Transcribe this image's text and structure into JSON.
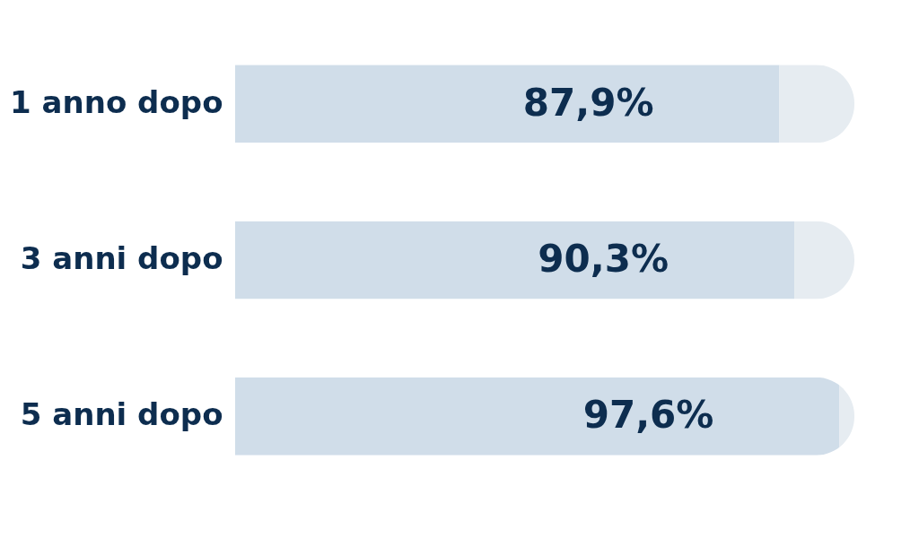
{
  "chart_data": {
    "type": "bar",
    "orientation": "horizontal",
    "stacked": true,
    "categories": [
      "1 anno dopo",
      "3 anni dopo",
      "5 anni dopo"
    ],
    "series": [
      {
        "color": "#d0dde9",
        "values": [
          87.9,
          90.3,
          97.6
        ],
        "value_labels": [
          "87,9%",
          "90,3%",
          "97,6%"
        ]
      },
      {
        "color": "#e6ecf1",
        "values": [
          12.1,
          9.7,
          2.4
        ]
      }
    ],
    "xlim": [
      0,
      100
    ],
    "tick_labels": "y"
  }
}
